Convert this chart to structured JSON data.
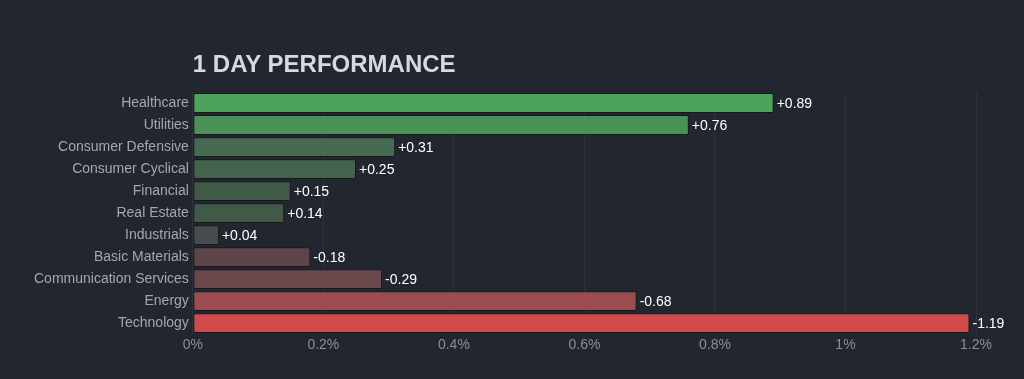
{
  "chart_data": {
    "type": "bar",
    "orientation": "horizontal",
    "title": "1 DAY PERFORMANCE",
    "categories": [
      "Healthcare",
      "Utilities",
      "Consumer Defensive",
      "Consumer Cyclical",
      "Financial",
      "Real Estate",
      "Industrials",
      "Basic Materials",
      "Communication Services",
      "Energy",
      "Technology"
    ],
    "values": [
      0.89,
      0.76,
      0.31,
      0.25,
      0.15,
      0.14,
      0.04,
      -0.18,
      -0.29,
      -0.68,
      -1.19
    ],
    "base": [
      0,
      0,
      0,
      0,
      0,
      0,
      0,
      0.18,
      0.29,
      0.68,
      1.19
    ],
    "value_labels": [
      "+0.89",
      "+0.76",
      "+0.31",
      "+0.25",
      "+0.15",
      "+0.14",
      "+0.04",
      "-0.18",
      "-0.29",
      "-0.68",
      "-1.19"
    ],
    "colors": [
      "#4ea35a",
      "#4a9155",
      "#466b50",
      "#44634c",
      "#415a48",
      "#415a48",
      "#474c4f",
      "#5e4549",
      "#6a474b",
      "#9a4c50",
      "#cf4a48"
    ],
    "xlim": [
      0,
      1.2
    ],
    "xticks": [
      {
        "value": 0,
        "label": "0%"
      },
      {
        "value": 0.2,
        "label": "0.2%"
      },
      {
        "value": 0.4,
        "label": "0.4%"
      },
      {
        "value": 0.6,
        "label": "0.6%"
      },
      {
        "value": 0.8,
        "label": "0.8%"
      },
      {
        "value": 1,
        "label": "1%"
      },
      {
        "value": 1.2,
        "label": "1.2%"
      }
    ],
    "grid": "x",
    "legend": false
  }
}
